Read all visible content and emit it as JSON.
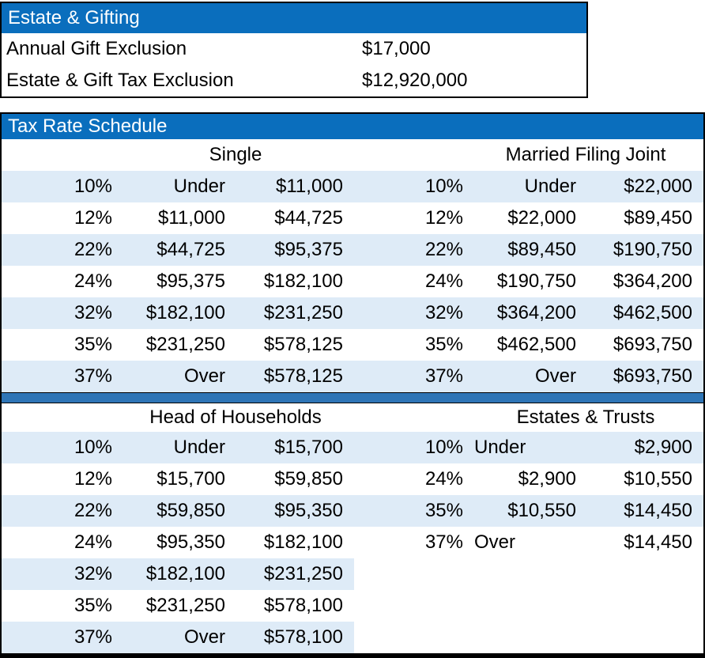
{
  "colors": {
    "header_blue": "#0A6EBD",
    "divider_blue": "#2E75B6",
    "row_stripe": "#DEEBF7",
    "border": "#000000"
  },
  "estate_gifting": {
    "title": "Estate & Gifting",
    "rows": [
      {
        "label": "Annual Gift Exclusion",
        "value": "$17,000"
      },
      {
        "label": "Estate & Gift Tax Exclusion",
        "value": "$12,920,000"
      }
    ]
  },
  "tax_rate_schedule": {
    "title": "Tax Rate Schedule",
    "top": {
      "left": {
        "header": "Single",
        "rows": [
          [
            "10%",
            "Under",
            "$11,000"
          ],
          [
            "12%",
            "$11,000",
            "$44,725"
          ],
          [
            "22%",
            "$44,725",
            "$95,375"
          ],
          [
            "24%",
            "$95,375",
            "$182,100"
          ],
          [
            "32%",
            "$182,100",
            "$231,250"
          ],
          [
            "35%",
            "$231,250",
            "$578,125"
          ],
          [
            "37%",
            "Over",
            "$578,125"
          ]
        ]
      },
      "right": {
        "header": "Married Filing Joint",
        "rows": [
          [
            "10%",
            "Under",
            "$22,000"
          ],
          [
            "12%",
            "$22,000",
            "$89,450"
          ],
          [
            "22%",
            "$89,450",
            "$190,750"
          ],
          [
            "24%",
            "$190,750",
            "$364,200"
          ],
          [
            "32%",
            "$364,200",
            "$462,500"
          ],
          [
            "35%",
            "$462,500",
            "$693,750"
          ],
          [
            "37%",
            "Over",
            "$693,750"
          ]
        ]
      }
    },
    "bottom": {
      "left": {
        "header": "Head of Households",
        "rows": [
          [
            "10%",
            "Under",
            "$15,700"
          ],
          [
            "12%",
            "$15,700",
            "$59,850"
          ],
          [
            "22%",
            "$59,850",
            "$95,350"
          ],
          [
            "24%",
            "$95,350",
            "$182,100"
          ],
          [
            "32%",
            "$182,100",
            "$231,250"
          ],
          [
            "35%",
            "$231,250",
            "$578,100"
          ],
          [
            "37%",
            "Over",
            "$578,100"
          ]
        ]
      },
      "right": {
        "header": "Estates & Trusts",
        "rows": [
          [
            "10%",
            "Under",
            "$2,900"
          ],
          [
            "24%",
            "$2,900",
            "$10,550"
          ],
          [
            "35%",
            "$10,550",
            "$14,450"
          ],
          [
            "37%",
            "Over",
            "$14,450"
          ]
        ]
      }
    }
  }
}
